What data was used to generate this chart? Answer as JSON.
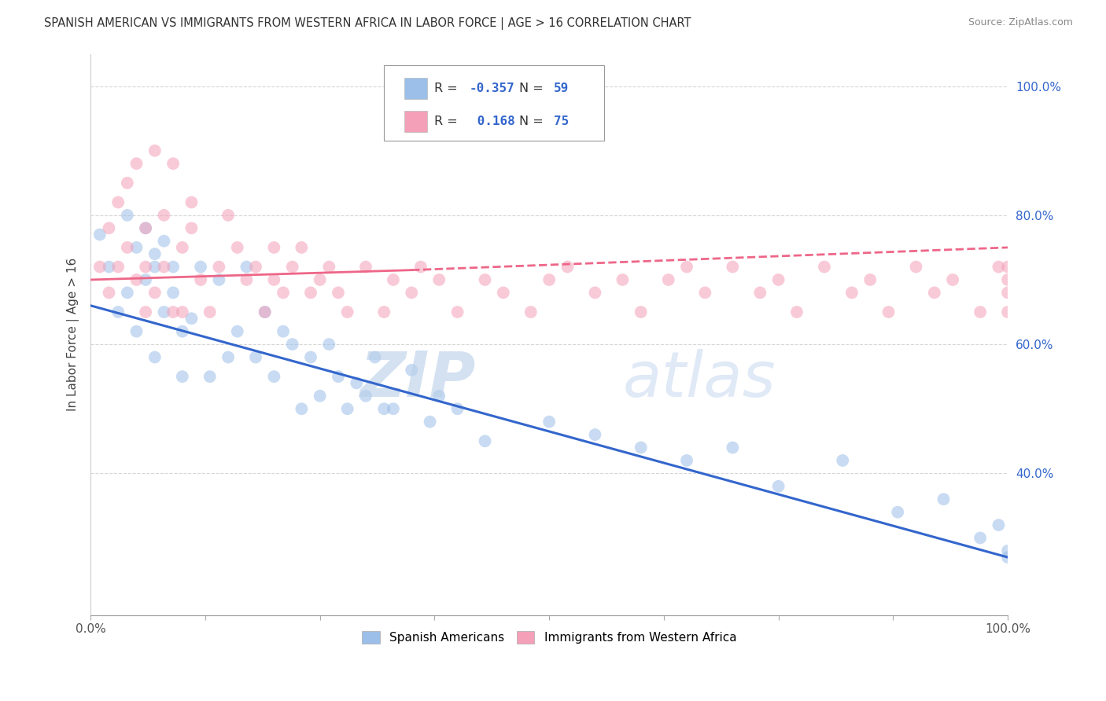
{
  "title": "SPANISH AMERICAN VS IMMIGRANTS FROM WESTERN AFRICA IN LABOR FORCE | AGE > 16 CORRELATION CHART",
  "source": "Source: ZipAtlas.com",
  "ylabel": "In Labor Force | Age > 16",
  "xlim": [
    0,
    100
  ],
  "ylim": [
    18,
    105
  ],
  "y_ticks": [
    40,
    60,
    80,
    100
  ],
  "y_tick_labels": [
    "40.0%",
    "60.0%",
    "80.0%",
    "100.0%"
  ],
  "blue_color": "#9BBFE8",
  "pink_color": "#F4A0B8",
  "blue_line_color": "#3366CC",
  "pink_line_color": "#EE6688",
  "watermark_zip": "ZIP",
  "watermark_atlas": "atlas",
  "blue_scatter_x": [
    1,
    2,
    3,
    4,
    4,
    5,
    5,
    6,
    6,
    7,
    7,
    7,
    8,
    8,
    9,
    9,
    10,
    10,
    11,
    12,
    13,
    14,
    15,
    16,
    17,
    18,
    19,
    20,
    21,
    22,
    23,
    24,
    25,
    26,
    27,
    28,
    29,
    30,
    31,
    32,
    33,
    35,
    37,
    38,
    40,
    43,
    50,
    55,
    60,
    65,
    70,
    75,
    82,
    88,
    93,
    97,
    99,
    100,
    100
  ],
  "blue_scatter_y": [
    77,
    72,
    65,
    80,
    68,
    75,
    62,
    70,
    78,
    58,
    72,
    74,
    65,
    76,
    72,
    68,
    62,
    55,
    64,
    72,
    55,
    70,
    58,
    62,
    72,
    58,
    65,
    55,
    62,
    60,
    50,
    58,
    52,
    60,
    55,
    50,
    54,
    52,
    58,
    50,
    50,
    56,
    48,
    52,
    50,
    45,
    48,
    46,
    44,
    42,
    44,
    38,
    42,
    34,
    36,
    30,
    32,
    27,
    28
  ],
  "pink_scatter_x": [
    1,
    2,
    2,
    3,
    3,
    4,
    4,
    5,
    5,
    6,
    6,
    6,
    7,
    7,
    8,
    8,
    9,
    9,
    10,
    10,
    11,
    11,
    12,
    13,
    14,
    15,
    16,
    17,
    18,
    19,
    20,
    20,
    21,
    22,
    23,
    24,
    25,
    26,
    27,
    28,
    30,
    32,
    33,
    35,
    36,
    38,
    40,
    43,
    45,
    48,
    50,
    52,
    55,
    58,
    60,
    63,
    65,
    67,
    70,
    73,
    75,
    77,
    80,
    83,
    85,
    87,
    90,
    92,
    94,
    97,
    99,
    100,
    100,
    100,
    100
  ],
  "pink_scatter_y": [
    72,
    68,
    78,
    82,
    72,
    75,
    85,
    70,
    88,
    72,
    78,
    65,
    90,
    68,
    80,
    72,
    65,
    88,
    75,
    65,
    78,
    82,
    70,
    65,
    72,
    80,
    75,
    70,
    72,
    65,
    75,
    70,
    68,
    72,
    75,
    68,
    70,
    72,
    68,
    65,
    72,
    65,
    70,
    68,
    72,
    70,
    65,
    70,
    68,
    65,
    70,
    72,
    68,
    70,
    65,
    70,
    72,
    68,
    72,
    68,
    70,
    65,
    72,
    68,
    70,
    65,
    72,
    68,
    70,
    65,
    72,
    68,
    70,
    65,
    72
  ],
  "blue_trend_x0": 0,
  "blue_trend_y0": 66,
  "blue_trend_x1": 100,
  "blue_trend_y1": 27,
  "pink_solid_x0": 0,
  "pink_solid_y0": 70,
  "pink_solid_x1": 35,
  "pink_solid_y1": 71.5,
  "pink_dash_x0": 35,
  "pink_dash_y0": 71.5,
  "pink_dash_x1": 100,
  "pink_dash_y1": 75
}
